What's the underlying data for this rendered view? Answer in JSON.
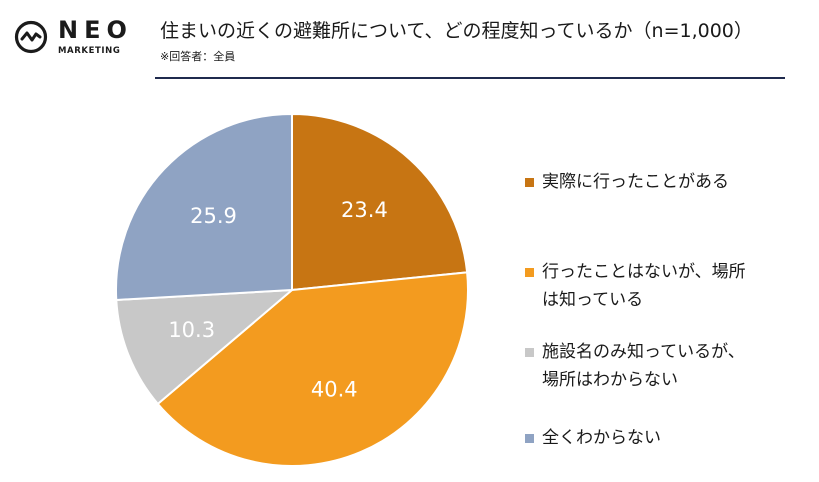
{
  "logo": {
    "name": "NEO",
    "sub": "MARKETING"
  },
  "header": {
    "title": "住まいの近くの避難所について、どの程度知っているか（n=1,000）",
    "subtitle": "※回答者：全員"
  },
  "colors": {
    "accent_rule": "#1f2a4d"
  },
  "chart_data": {
    "type": "pie",
    "title": "住まいの近くの避難所について、どの程度知っているか（n=1,000）",
    "start": "12 o'clock, clockwise",
    "legend_position": "right",
    "slices": [
      {
        "label": "実際に行ったことがある",
        "value": 23.4,
        "color": "#c77513",
        "legend_lines": [
          "実際に行ったことがある"
        ]
      },
      {
        "label": "行ったことはないが、場所は知っている",
        "value": 40.4,
        "color": "#f39b1f",
        "legend_lines": [
          "行ったことはないが、場所",
          "は知っている"
        ]
      },
      {
        "label": "施設名のみ知っているが、場所はわからない",
        "value": 10.3,
        "color": "#c8c8c8",
        "legend_lines": [
          "施設名のみ知っているが、",
          "場所はわからない"
        ]
      },
      {
        "label": "全くわからない",
        "value": 25.9,
        "color": "#8fa3c3",
        "legend_lines": [
          "全くわからない"
        ]
      }
    ]
  }
}
